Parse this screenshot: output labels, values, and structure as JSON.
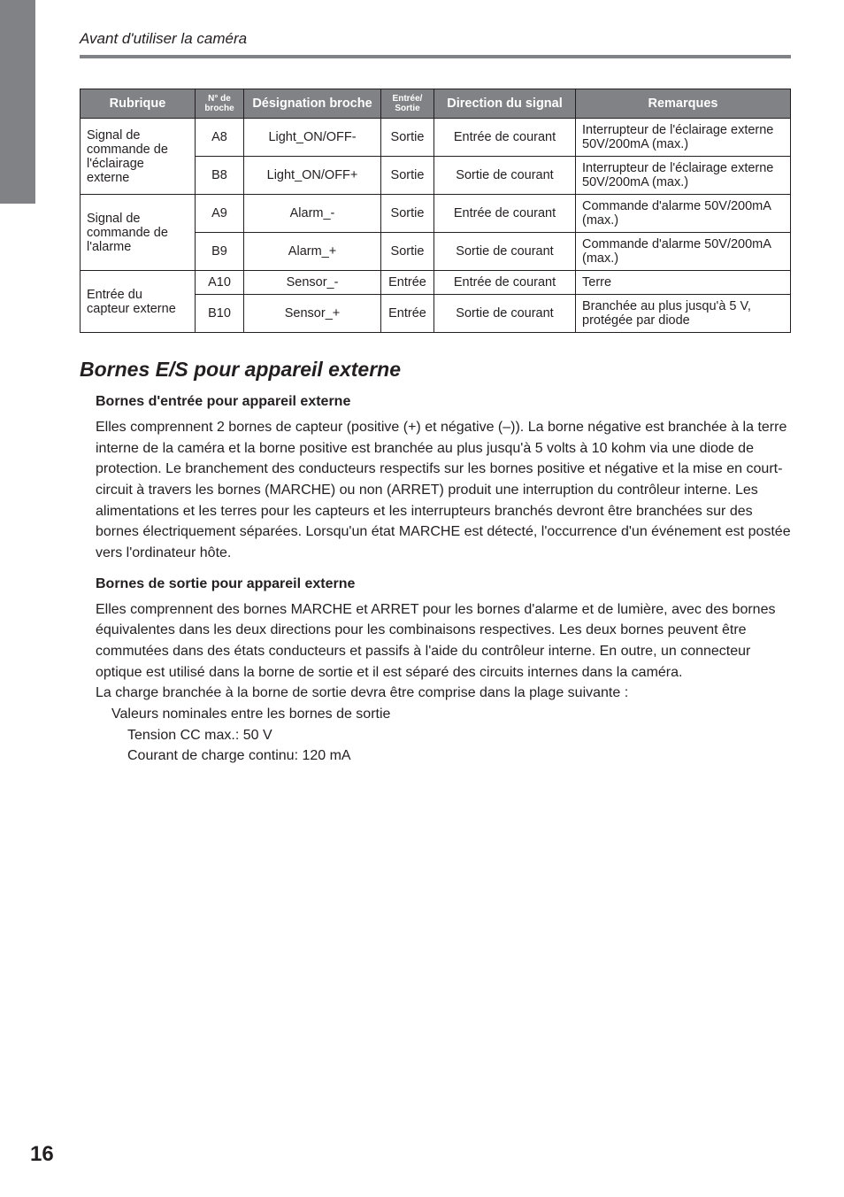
{
  "header": {
    "running_title": "Avant d'utiliser la caméra"
  },
  "table": {
    "headers": {
      "rubrique": "Rubrique",
      "num": "N° de broche",
      "designation": "Désignation broche",
      "es": "Entrée/ Sortie",
      "direction": "Direction du signal",
      "remarques": "Remarques"
    },
    "groups": [
      {
        "label": "Signal de commande de l'éclairage externe",
        "rows": [
          {
            "num": "A8",
            "des": "Light_ON/OFF-",
            "es": "Sortie",
            "dir": "Entrée de courant",
            "rem": "Interrupteur de l'éclairage externe 50V/200mA (max.)"
          },
          {
            "num": "B8",
            "des": "Light_ON/OFF+",
            "es": "Sortie",
            "dir": "Sortie de courant",
            "rem": "Interrupteur de l'éclairage externe 50V/200mA (max.)"
          }
        ]
      },
      {
        "label": "Signal de commande de l'alarme",
        "rows": [
          {
            "num": "A9",
            "des": "Alarm_-",
            "es": "Sortie",
            "dir": "Entrée de courant",
            "rem": "Commande d'alarme 50V/200mA (max.)"
          },
          {
            "num": "B9",
            "des": "Alarm_+",
            "es": "Sortie",
            "dir": "Sortie de courant",
            "rem": "Commande d'alarme 50V/200mA (max.)"
          }
        ]
      },
      {
        "label": "Entrée du capteur externe",
        "rows": [
          {
            "num": "A10",
            "des": "Sensor_-",
            "es": "Entrée",
            "dir": "Entrée de courant",
            "rem": "Terre"
          },
          {
            "num": "B10",
            "des": "Sensor_+",
            "es": "Entrée",
            "dir": "Sortie de courant",
            "rem": "Branchée au plus jusqu'à 5 V, protégée par diode"
          }
        ]
      }
    ]
  },
  "section": {
    "title": "Bornes E/S pour appareil externe",
    "sub1_title": "Bornes d'entrée pour appareil externe",
    "sub1_body": "Elles comprennent 2 bornes de capteur (positive (+) et négative (–)). La borne négative est branchée à la terre interne de la caméra et la borne positive est branchée au plus jusqu'à 5 volts à 10 kohm via une diode de protection. Le branchement des conducteurs respectifs sur les bornes positive et négative et la mise en court-circuit à travers les bornes (MARCHE) ou non (ARRET) produit une interruption du contrôleur interne. Les alimentations et les terres pour les capteurs et les interrupteurs branchés devront être branchées sur des bornes électriquement séparées. Lorsqu'un état MARCHE est détecté, l'occurrence d'un événement est postée vers l'ordinateur hôte.",
    "sub2_title": "Bornes de sortie pour appareil externe",
    "sub2_body": "Elles comprennent des bornes MARCHE et ARRET pour les bornes d'alarme et de lumière, avec des bornes équivalentes dans les deux directions pour les combinaisons respectives. Les deux bornes peuvent être commutées dans des états conducteurs et passifs à l'aide du contrôleur interne. En outre, un connecteur optique est utilisé dans la borne de sortie et il est séparé des circuits internes dans la caméra.",
    "sub2_line2": "La charge branchée à la borne de sortie devra être comprise dans la plage suivante :",
    "sub2_indent1": "Valeurs nominales entre les bornes de sortie",
    "sub2_indent2a": "Tension CC max.: 50 V",
    "sub2_indent2b": "Courant de charge continu: 120 mA"
  },
  "page_number": "16"
}
